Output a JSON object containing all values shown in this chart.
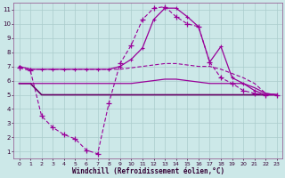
{
  "xlabel": "Windchill (Refroidissement éolien,°C)",
  "x": [
    0,
    1,
    2,
    3,
    4,
    5,
    6,
    7,
    8,
    9,
    10,
    11,
    12,
    13,
    14,
    15,
    16,
    17,
    18,
    19,
    20,
    21,
    22,
    23
  ],
  "line_main_y": [
    6.9,
    6.7,
    3.5,
    2.7,
    2.2,
    1.9,
    1.1,
    0.85,
    4.4,
    7.2,
    8.5,
    10.3,
    11.1,
    11.2,
    10.5,
    10.0,
    9.8,
    7.3,
    6.2,
    5.8,
    5.3,
    5.1,
    5.0,
    5.0
  ],
  "line_top_y": [
    7.0,
    6.8,
    6.8,
    6.8,
    6.8,
    6.8,
    6.8,
    6.8,
    6.8,
    7.0,
    7.5,
    8.3,
    10.3,
    11.1,
    11.1,
    10.5,
    9.8,
    7.3,
    8.4,
    6.2,
    5.8,
    5.3,
    5.0,
    5.0
  ],
  "line_mid1_y": [
    7.0,
    6.8,
    6.8,
    6.8,
    6.8,
    6.8,
    6.8,
    6.8,
    6.8,
    6.8,
    6.9,
    7.0,
    7.1,
    7.2,
    7.2,
    7.1,
    7.0,
    7.0,
    6.8,
    6.5,
    6.2,
    5.8,
    5.1,
    5.0
  ],
  "line_mid2_y": [
    5.8,
    5.8,
    5.8,
    5.8,
    5.8,
    5.8,
    5.8,
    5.8,
    5.8,
    5.8,
    5.8,
    5.9,
    6.0,
    6.1,
    6.1,
    6.0,
    5.9,
    5.8,
    5.8,
    5.8,
    5.8,
    5.5,
    5.1,
    5.0
  ],
  "line_bot_y": [
    5.8,
    5.8,
    5.0,
    5.0,
    5.0,
    5.0,
    5.0,
    5.0,
    5.0,
    5.0,
    5.0,
    5.0,
    5.0,
    5.0,
    5.0,
    5.0,
    5.0,
    5.0,
    5.0,
    5.0,
    5.0,
    5.0,
    5.0,
    5.0
  ],
  "line_color": "#990099",
  "bg_color": "#cce8e8",
  "grid_color": "#aacccc",
  "ylim": [
    0.5,
    11.5
  ],
  "yticks": [
    1,
    2,
    3,
    4,
    5,
    6,
    7,
    8,
    9,
    10,
    11
  ],
  "xticks": [
    0,
    1,
    2,
    3,
    4,
    5,
    6,
    7,
    8,
    9,
    10,
    11,
    12,
    13,
    14,
    15,
    16,
    17,
    18,
    19,
    20,
    21,
    22,
    23
  ]
}
